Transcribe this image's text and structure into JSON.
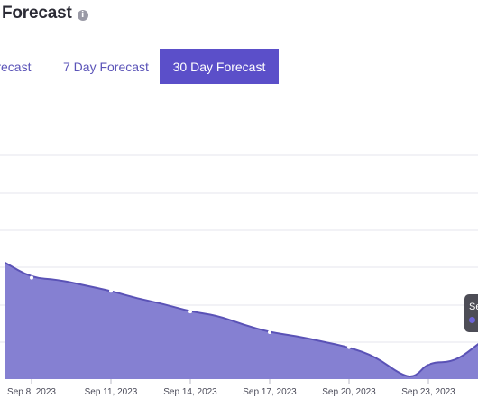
{
  "header": {
    "title": "Forecast",
    "info_icon": "info-icon"
  },
  "tabs": [
    {
      "label": "Forecast",
      "active": false
    },
    {
      "label": "7 Day Forecast",
      "active": false
    },
    {
      "label": "30 Day Forecast",
      "active": true
    }
  ],
  "tooltip": {
    "text": "Se"
  },
  "colors": {
    "accent": "#5b4fc9",
    "area_fill": "#8580d2",
    "line": "#5a52b6",
    "grid": "#e6e6ec"
  },
  "chart_data": {
    "type": "area",
    "x_tick_labels": [
      "Sep 8, 2023",
      "Sep 11, 2023",
      "Sep 14, 2023",
      "Sep 17, 2023",
      "Sep 20, 2023",
      "Sep 23, 2023"
    ],
    "series": [
      {
        "points": [
          [
            "Sep 7, 2023",
            0.62
          ],
          [
            "Sep 8, 2023",
            0.54
          ],
          [
            "Sep 9, 2023",
            0.53
          ],
          [
            "Sep 10, 2023",
            0.5
          ],
          [
            "Sep 11, 2023",
            0.47
          ],
          [
            "Sep 12, 2023",
            0.43
          ],
          [
            "Sep 13, 2023",
            0.4
          ],
          [
            "Sep 14, 2023",
            0.36
          ],
          [
            "Sep 15, 2023",
            0.34
          ],
          [
            "Sep 16, 2023",
            0.29
          ],
          [
            "Sep 17, 2023",
            0.25
          ],
          [
            "Sep 18, 2023",
            0.23
          ],
          [
            "Sep 19, 2023",
            0.2
          ],
          [
            "Sep 20, 2023",
            0.17
          ],
          [
            "Sep 21, 2023",
            0.12
          ],
          [
            "Sep 22, 2023",
            0.02
          ],
          [
            "Sep 22.5, 2023",
            0.01
          ],
          [
            "Sep 23, 2023",
            0.09
          ],
          [
            "Sep 24, 2023",
            0.09
          ],
          [
            "Sep 25, 2023",
            0.2
          ]
        ]
      }
    ],
    "grid": true
  }
}
